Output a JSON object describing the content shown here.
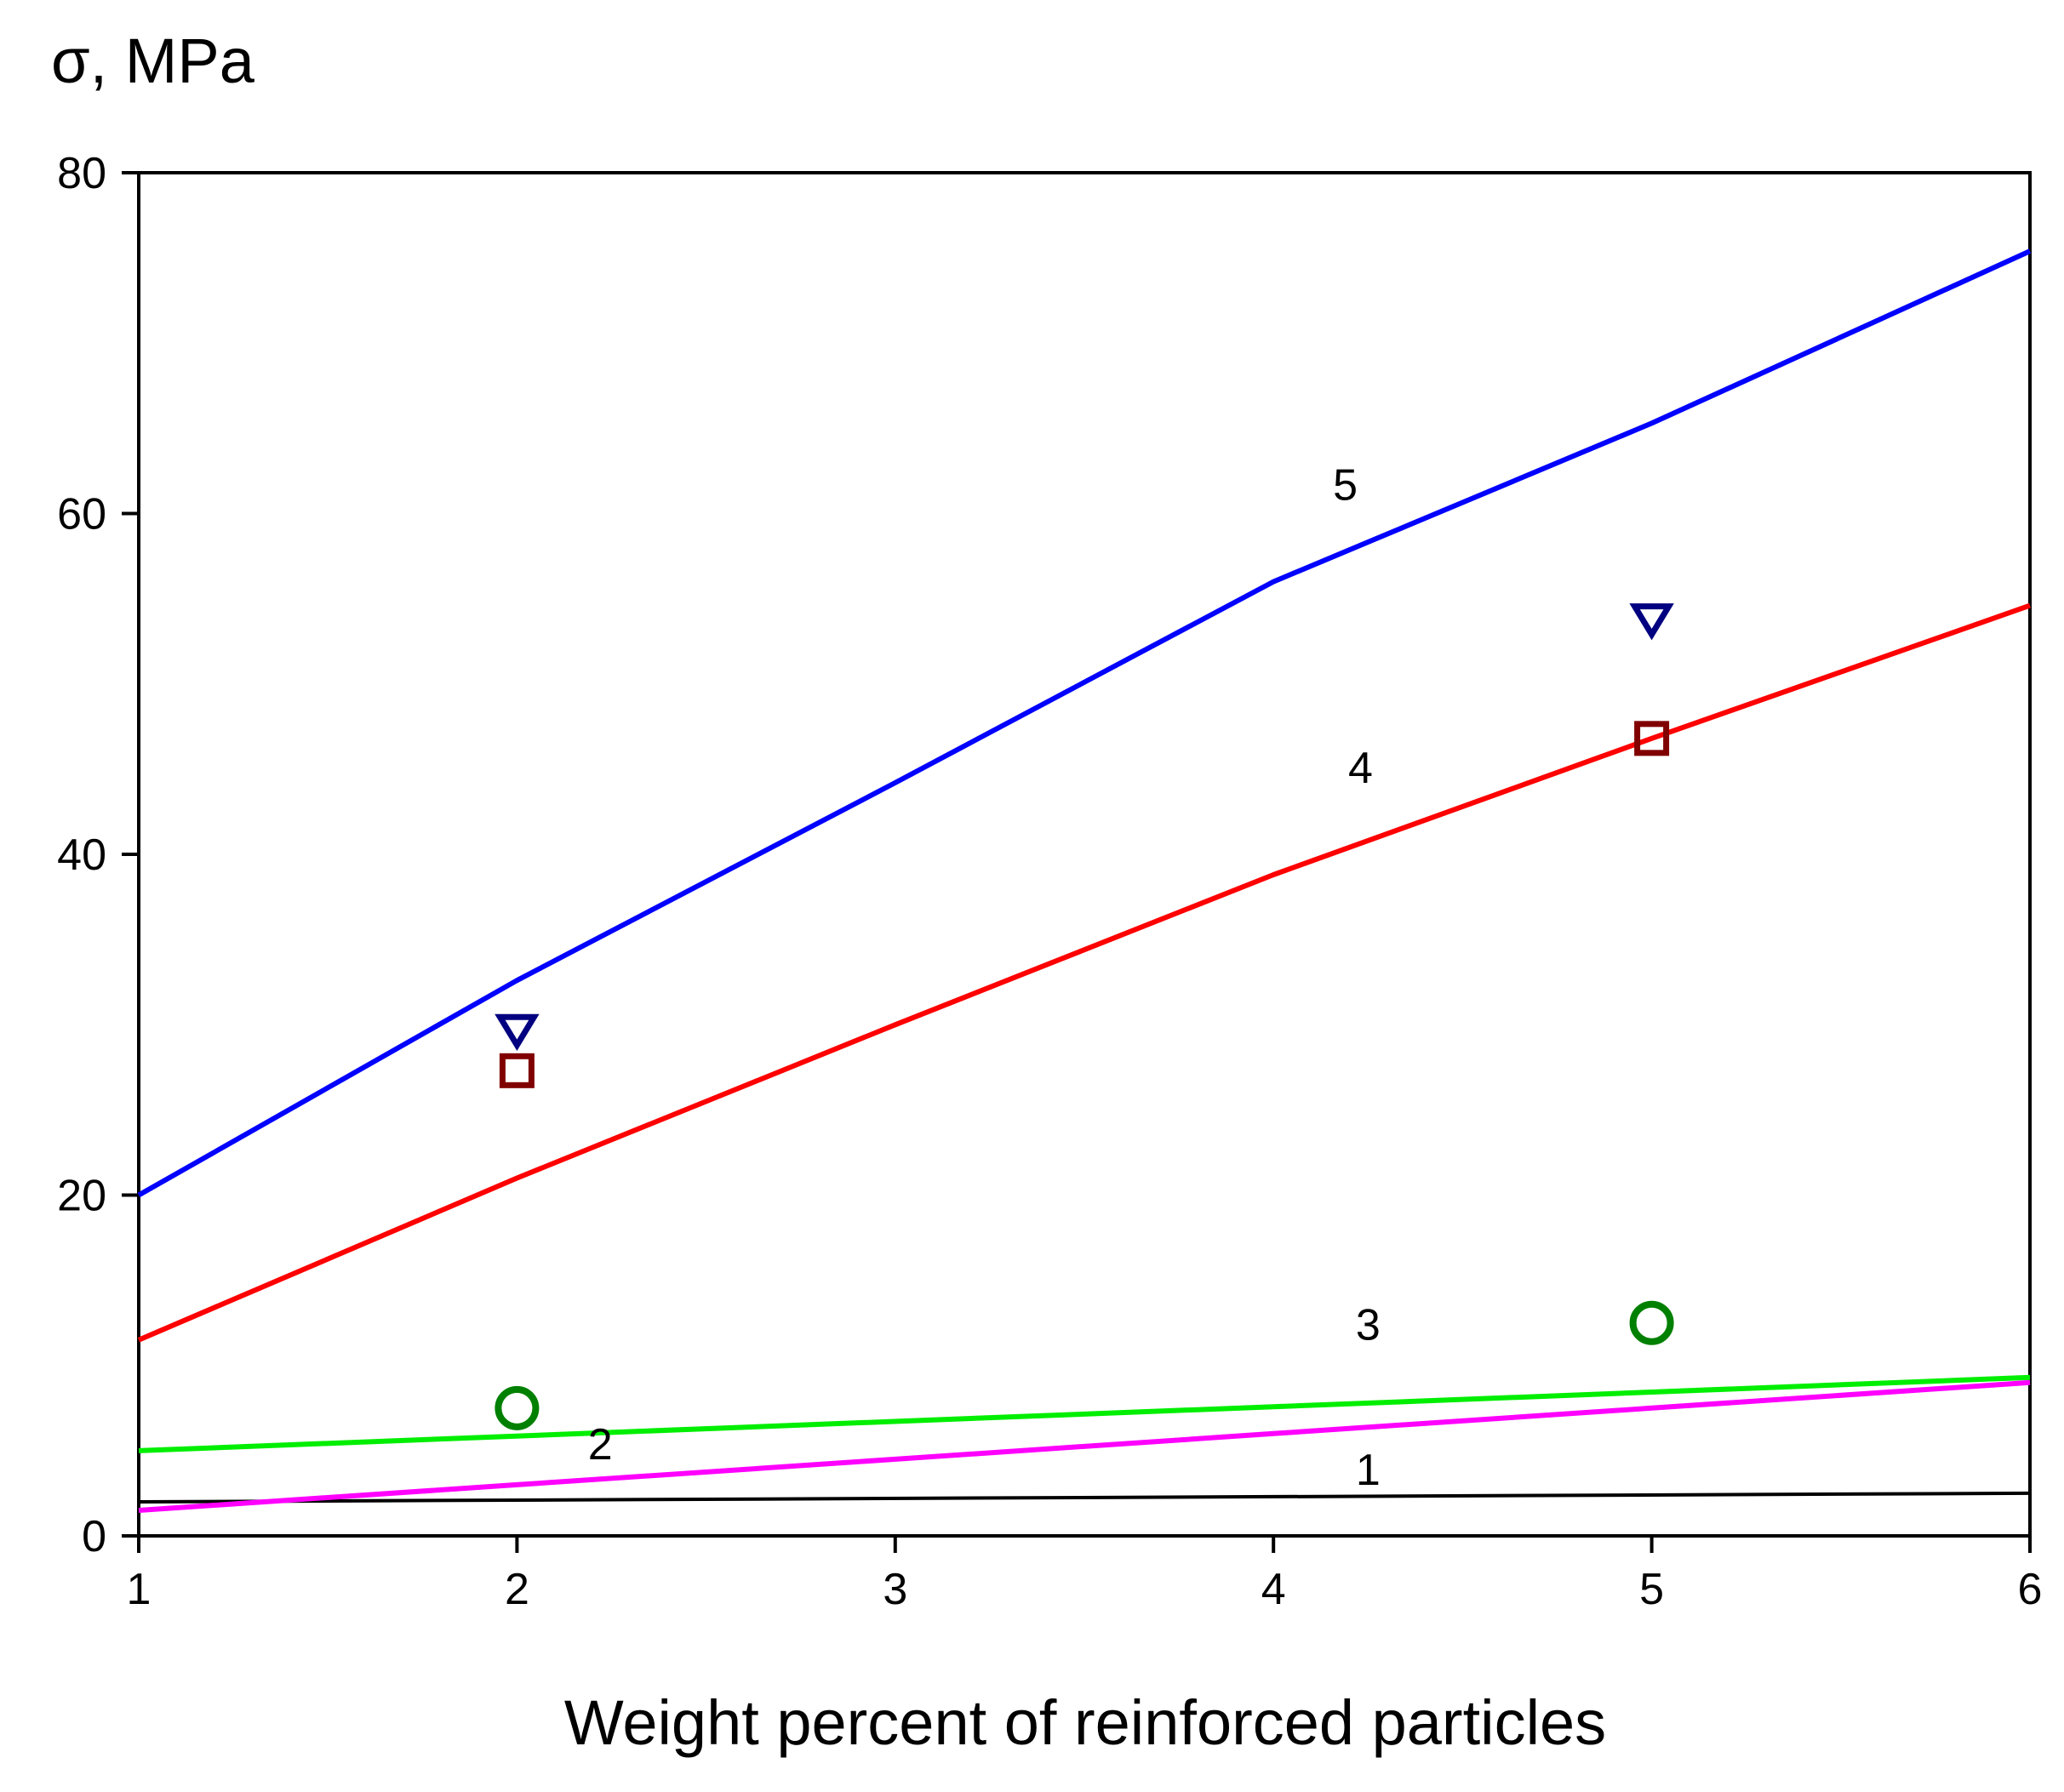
{
  "chart_data": {
    "type": "line",
    "title": "",
    "ylabel": "σ, MPa",
    "xlabel": "Weight percent of reinforced particles",
    "xlim": [
      1,
      6
    ],
    "ylim": [
      0,
      80
    ],
    "x_ticks": [
      1,
      2,
      3,
      4,
      5,
      6
    ],
    "x_tick_labels": [
      "1",
      "2",
      "3",
      "4",
      "5",
      "6"
    ],
    "y_ticks": [
      0,
      20,
      40,
      60,
      80
    ],
    "y_tick_labels": [
      "0",
      "20",
      "40",
      "60",
      "80"
    ],
    "grid": false,
    "series": [
      {
        "name": "1",
        "label": "1",
        "color": "#000000",
        "x": [
          1,
          6
        ],
        "y": [
          2.0,
          2.5
        ],
        "label_at": [
          4.25,
          3.0
        ]
      },
      {
        "name": "2",
        "label": "2",
        "color": "#ff00ff",
        "x": [
          1,
          2,
          3,
          4,
          5,
          6
        ],
        "y": [
          1.5,
          3.0,
          4.5,
          6.0,
          7.5,
          9.0
        ],
        "label_at": [
          2.22,
          4.5
        ]
      },
      {
        "name": "3",
        "label": "3",
        "color": "#00ee00",
        "x": [
          1,
          6
        ],
        "y": [
          5.0,
          9.3
        ],
        "label_at": [
          4.25,
          11.5
        ]
      },
      {
        "name": "4",
        "label": "4",
        "color": "#ff0000",
        "x": [
          1,
          2,
          3,
          4,
          5,
          6
        ],
        "y": [
          11.5,
          21.0,
          30.0,
          38.8,
          46.8,
          54.6
        ],
        "label_at": [
          4.23,
          44.2
        ]
      },
      {
        "name": "5",
        "label": "5",
        "color": "#0000ff",
        "x": [
          1,
          2,
          3,
          4,
          5,
          6
        ],
        "y": [
          20.0,
          32.6,
          44.2,
          56.0,
          65.3,
          75.4
        ],
        "label_at": [
          4.19,
          60.8
        ]
      }
    ],
    "markers": [
      {
        "name": "circle",
        "shape": "circle",
        "color": "#008000",
        "x": [
          2,
          5
        ],
        "y": [
          7.5,
          12.5
        ]
      },
      {
        "name": "square",
        "shape": "square",
        "color": "#800000",
        "x": [
          2,
          5
        ],
        "y": [
          27.3,
          46.8
        ]
      },
      {
        "name": "triangle-down",
        "shape": "triangle-down",
        "color": "#000080",
        "x": [
          2,
          5
        ],
        "y": [
          29.7,
          53.8
        ]
      }
    ]
  }
}
